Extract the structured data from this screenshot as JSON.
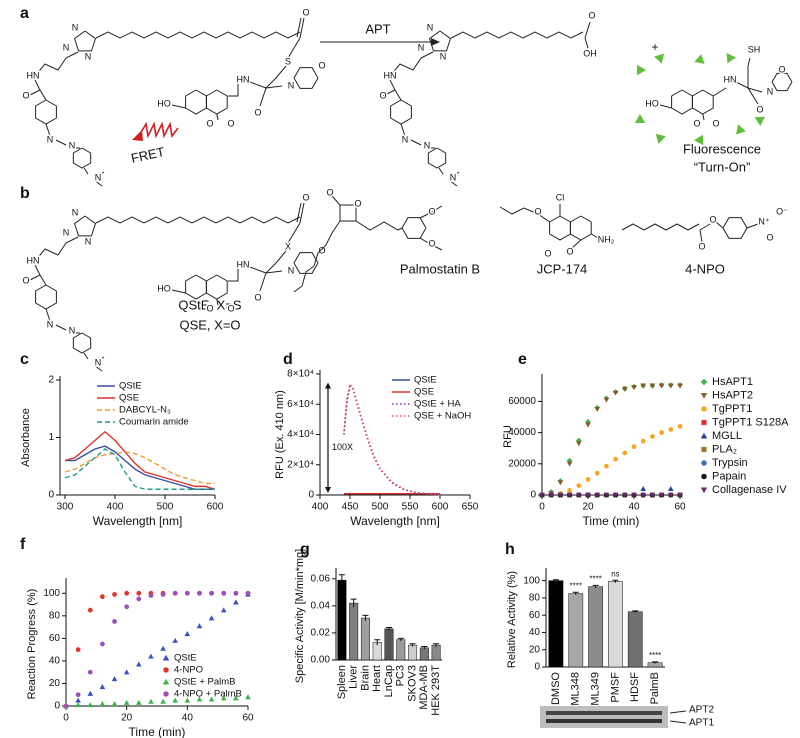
{
  "panel_labels": [
    "a",
    "b",
    "c",
    "d",
    "e",
    "f",
    "g",
    "h"
  ],
  "scheme": {
    "arrow_label": "APT",
    "plus": "+",
    "fret": "FRET",
    "fluorescence": "Fluorescence",
    "turn_on": "“Turn-On”",
    "probe_a_atoms": [
      "N",
      "N",
      "N",
      "O",
      "S",
      "N",
      "O",
      "HN",
      "O",
      "HO",
      "O",
      "O",
      "HN",
      "O",
      "N",
      "N",
      "N"
    ],
    "product_atoms": [
      "N",
      "N",
      "N",
      "O",
      "OH",
      "HN",
      "O",
      "N",
      "N",
      "N"
    ],
    "coumarin_atoms": [
      "HO",
      "O",
      "O",
      "HN",
      "SH",
      "N",
      "O",
      "O"
    ],
    "probe_b_atoms": [
      "N",
      "N",
      "N",
      "O",
      "X",
      "N",
      "O",
      "HN",
      "O",
      "HO",
      "O",
      "O",
      "HN",
      "O",
      "N",
      "N",
      "N"
    ],
    "qste": "QStE, X=S",
    "qse": "QSE, X=O",
    "palmostatin": "Palmostatin B",
    "palmostatin_atoms": [
      "O",
      "O",
      "O",
      "O"
    ],
    "jcp": "JCP-174",
    "jcp_atoms": [
      "Cl",
      "O",
      "O",
      "O",
      "NH₂"
    ],
    "npo": "4-NPO",
    "npo_atoms": [
      "O",
      "O",
      "N⁺",
      "O⁻",
      "O"
    ]
  },
  "chart_data": [
    {
      "type": "line",
      "xlabel": "Wavelength [nm]",
      "ylabel": "Absorbance",
      "x": [
        300,
        320,
        340,
        360,
        380,
        400,
        420,
        440,
        460,
        480,
        500,
        520,
        540,
        560,
        580,
        600
      ],
      "xlim": [
        290,
        600
      ],
      "xticks": [
        300,
        400,
        500,
        600
      ],
      "ylim": [
        0,
        2
      ],
      "yticks": [
        0,
        1,
        2
      ],
      "legend": "upper right",
      "series": [
        {
          "name": "QStE",
          "color": "#3b4ea0",
          "values": [
            0.6,
            0.6,
            0.7,
            0.8,
            0.85,
            0.75,
            0.6,
            0.45,
            0.35,
            0.3,
            0.25,
            0.2,
            0.15,
            0.1,
            0.1,
            0.1
          ]
        },
        {
          "name": "QSE",
          "color": "#e0302e",
          "values": [
            0.6,
            0.65,
            0.8,
            0.95,
            1.1,
            0.95,
            0.75,
            0.55,
            0.4,
            0.35,
            0.3,
            0.25,
            0.2,
            0.15,
            0.15,
            0.1
          ]
        },
        {
          "name": "DABCYL-N₃",
          "color": "#f39a2b",
          "dash": "dashed",
          "values": [
            0.4,
            0.45,
            0.55,
            0.65,
            0.7,
            0.72,
            0.75,
            0.72,
            0.65,
            0.55,
            0.45,
            0.35,
            0.3,
            0.25,
            0.2,
            0.2
          ]
        },
        {
          "name": "Coumarin amide",
          "color": "#1a9a8a",
          "dash": "dashed",
          "values": [
            0.3,
            0.35,
            0.5,
            0.65,
            0.8,
            0.7,
            0.4,
            0.15,
            0.1,
            0.1,
            0.1,
            0.1,
            0.1,
            0.1,
            0.1,
            0.1
          ]
        }
      ]
    },
    {
      "type": "line",
      "xlabel": "Wavelength [nm]",
      "ylabel": "RFU (Ex. 410 nm)",
      "annotation": "100X",
      "x": [
        440,
        445,
        450,
        455,
        460,
        470,
        480,
        490,
        500,
        520,
        540,
        560,
        580,
        600
      ],
      "xlim": [
        400,
        650
      ],
      "xticks": [
        400,
        450,
        500,
        550,
        600,
        650
      ],
      "ylim": [
        0,
        80000
      ],
      "yticks": [
        0,
        {
          "value": 20000,
          "label": "2×10⁴"
        },
        {
          "value": 40000,
          "label": "4×10⁴"
        },
        {
          "value": 60000,
          "label": "6×10⁴"
        },
        {
          "value": 80000,
          "label": "8×10⁴"
        }
      ],
      "legend": "upper right",
      "series": [
        {
          "name": "QStE",
          "color": "#3b4ea0",
          "values": [
            800,
            800,
            800,
            800,
            800,
            800,
            800,
            800,
            800,
            800,
            800,
            800,
            800,
            800
          ]
        },
        {
          "name": "QSE",
          "color": "#e0302e",
          "values": [
            900,
            900,
            900,
            900,
            900,
            900,
            900,
            900,
            900,
            900,
            900,
            900,
            900,
            900
          ]
        },
        {
          "name": "QStE + HA",
          "color": "#7a3a8a",
          "dash": "dotted",
          "values": [
            40000,
            62000,
            72000,
            70000,
            63000,
            49000,
            36000,
            25000,
            17000,
            8000,
            3500,
            1500,
            600,
            200
          ]
        },
        {
          "name": "QSE + NaOH",
          "color": "#e05080",
          "dash": "dotted",
          "values": [
            42000,
            64000,
            73000,
            71000,
            64000,
            50000,
            37000,
            26000,
            17500,
            8500,
            3800,
            1600,
            700,
            250
          ]
        }
      ]
    },
    {
      "type": "scatter",
      "xlabel": "Time (min)",
      "ylabel": "RFU",
      "x": [
        0,
        4,
        8,
        12,
        16,
        20,
        24,
        28,
        32,
        36,
        40,
        44,
        48,
        52,
        56,
        60
      ],
      "xlim": [
        0,
        60
      ],
      "xticks": [
        0,
        20,
        40,
        60
      ],
      "ylim": [
        0,
        75000
      ],
      "yticks": [
        0,
        20000,
        40000,
        60000
      ],
      "legend": "outside right",
      "series": [
        {
          "name": "HsAPT1",
          "color": "#3cb44b",
          "marker": "diamond",
          "values": [
            0,
            2000,
            9000,
            22000,
            35000,
            47000,
            56000,
            62000,
            66000,
            68000,
            69500,
            70000,
            70000,
            70500,
            70500,
            70500
          ]
        },
        {
          "name": "HsAPT2",
          "color": "#8b5a2b",
          "marker": "triangle-down",
          "values": [
            0,
            1000,
            8000,
            20000,
            33000,
            45000,
            55000,
            61000,
            65500,
            68000,
            69000,
            70000,
            70000,
            70000,
            70000,
            70000
          ]
        },
        {
          "name": "TgPPT1",
          "color": "#f5a623",
          "marker": "circle",
          "values": [
            0,
            0,
            1000,
            3000,
            6000,
            10000,
            14000,
            18500,
            23000,
            27000,
            31000,
            34500,
            37500,
            40000,
            42000,
            44000
          ]
        },
        {
          "name": "TgPPT1 S128A",
          "color": "#e8302a",
          "marker": "square",
          "values": [
            0,
            0,
            0,
            0,
            0,
            0,
            0,
            0,
            0,
            0,
            0,
            0,
            0,
            0,
            0,
            0
          ]
        },
        {
          "name": "MGLL",
          "color": "#2a3d9a",
          "marker": "triangle",
          "values": [
            0,
            0,
            0,
            0,
            0,
            0,
            0,
            0,
            0,
            0,
            0,
            4000,
            0,
            0,
            4000,
            0
          ]
        },
        {
          "name": "PLA₂",
          "color": "#a0782a",
          "marker": "square",
          "values": [
            0,
            0,
            0,
            0,
            0,
            0,
            0,
            0,
            0,
            0,
            0,
            0,
            0,
            0,
            0,
            0
          ]
        },
        {
          "name": "Trypsin",
          "color": "#3a6fc4",
          "marker": "circle",
          "values": [
            0,
            0,
            0,
            0,
            0,
            0,
            0,
            0,
            0,
            0,
            0,
            0,
            0,
            0,
            0,
            0
          ]
        },
        {
          "name": "Papain",
          "color": "#111111",
          "marker": "circle",
          "values": [
            0,
            0,
            0,
            0,
            0,
            0,
            0,
            0,
            0,
            0,
            0,
            0,
            0,
            0,
            0,
            0
          ]
        },
        {
          "name": "Collagenase IV",
          "color": "#6a2a6a",
          "marker": "triangle-down",
          "values": [
            0,
            0,
            0,
            0,
            0,
            0,
            0,
            0,
            0,
            0,
            0,
            0,
            0,
            0,
            0,
            0
          ]
        }
      ]
    },
    {
      "type": "scatter",
      "xlabel": "Time (min)",
      "ylabel": "Reaction Progress (%)",
      "x": [
        0,
        4,
        8,
        12,
        16,
        20,
        24,
        28,
        32,
        36,
        40,
        44,
        48,
        52,
        56,
        60
      ],
      "xlim": [
        0,
        60
      ],
      "xticks": [
        0,
        20,
        40,
        60
      ],
      "ylim": [
        0,
        110
      ],
      "yticks": [
        0,
        20,
        40,
        60,
        80,
        100
      ],
      "legend": "lower right",
      "series": [
        {
          "name": "QStE",
          "color": "#3a4fc4",
          "marker": "triangle",
          "values": [
            0,
            5,
            11,
            17,
            24,
            30,
            37,
            44,
            51,
            58,
            64,
            71,
            78,
            85,
            92,
            99
          ]
        },
        {
          "name": "4-NPO",
          "color": "#e8302a",
          "marker": "circle",
          "values": [
            0,
            50,
            85,
            97,
            99,
            100,
            100,
            100,
            100,
            100,
            100,
            100,
            100,
            100,
            100,
            100
          ]
        },
        {
          "name": "QStE + PalmB",
          "color": "#3cb44b",
          "marker": "triangle",
          "values": [
            0,
            1,
            1,
            2,
            2,
            3,
            3,
            4,
            4,
            5,
            5,
            6,
            6,
            7,
            7,
            8
          ]
        },
        {
          "name": "4-NPO + PalmB",
          "color": "#9b4fb8",
          "marker": "circle",
          "values": [
            0,
            10,
            30,
            55,
            75,
            88,
            95,
            98,
            99,
            100,
            100,
            100,
            100,
            100,
            100,
            100
          ]
        }
      ]
    },
    {
      "type": "bar",
      "ylabel": "Specific Activity [M/min*mg]",
      "categories": [
        "Spleen",
        "Liver",
        "Brain",
        "Heart",
        "LnCap",
        "PC3",
        "SKOV3",
        "MDA-MB",
        "HEK 293T"
      ],
      "values": [
        0.059,
        0.042,
        0.031,
        0.013,
        0.023,
        0.015,
        0.011,
        0.009,
        0.011
      ],
      "errors": [
        0.004,
        0.003,
        0.002,
        0.002,
        0.001,
        0.001,
        0.001,
        0.001,
        0.001
      ],
      "colors": [
        "#000000",
        "#7f7f7f",
        "#a0a0a0",
        "#d9d9d9",
        "#555555",
        "#999999",
        "#cccccc",
        "#777777",
        "#888888"
      ],
      "ylim": [
        0,
        0.065
      ],
      "yticks": [
        {
          "value": 0,
          "label": "0.00"
        },
        {
          "value": 0.02,
          "label": "0.02"
        },
        {
          "value": 0.04,
          "label": "0.04"
        },
        {
          "value": 0.06,
          "label": "0.06"
        }
      ]
    },
    {
      "type": "bar",
      "ylabel": "Relative Activity (%)",
      "categories": [
        "DMSO",
        "ML348",
        "ML349",
        "PMSF",
        "HDSF",
        "PalmB"
      ],
      "values": [
        100,
        85,
        93,
        99,
        64,
        5
      ],
      "errors": [
        1,
        1.5,
        1.5,
        1.5,
        1,
        1
      ],
      "colors": [
        "#000000",
        "#a6a6a6",
        "#8c8c8c",
        "#d9d9d9",
        "#707070",
        "#a6a6a6"
      ],
      "significance": [
        null,
        "****",
        "****",
        "ns",
        null,
        "****"
      ],
      "ylim": [
        0,
        110
      ],
      "yticks": [
        0,
        20,
        40,
        60,
        80,
        100
      ]
    }
  ],
  "gel": {
    "labels": [
      "APT2",
      "APT1"
    ]
  }
}
